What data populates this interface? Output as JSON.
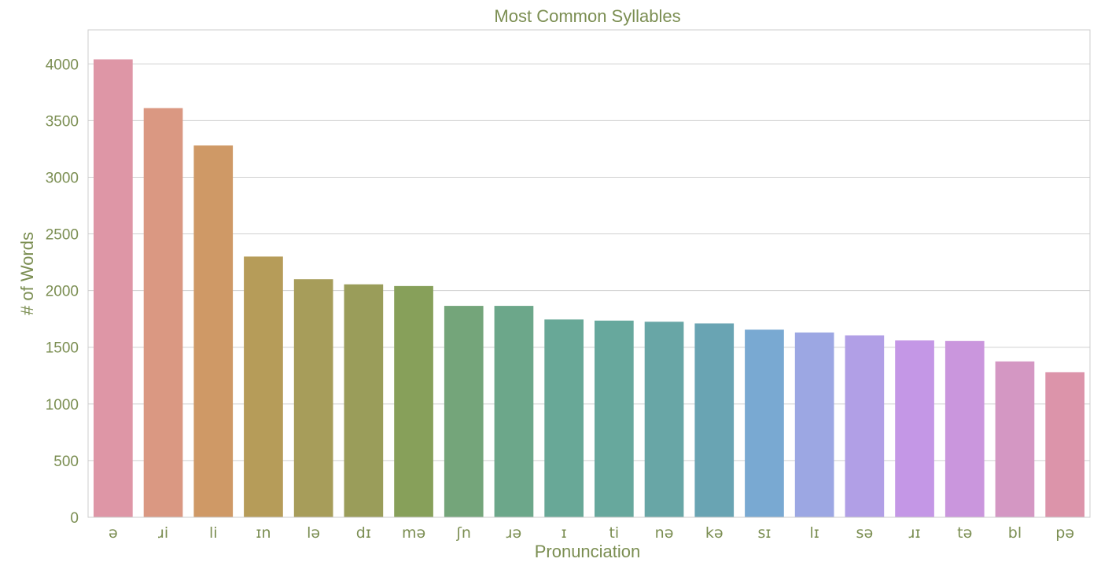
{
  "chart_data": {
    "type": "bar",
    "title": "Most Common Syllables",
    "xlabel": "Pronunciation",
    "ylabel": "# of Words",
    "categories": [
      "ə",
      "ɹi",
      "li",
      "ɪn",
      "lə",
      "dɪ",
      "mə",
      "ʃn",
      "ɹə",
      "ɪ",
      "ti",
      "nə",
      "kə",
      "sɪ",
      "lɪ",
      "sə",
      "ɹɪ",
      "tə",
      "bl",
      "pə"
    ],
    "values": [
      4040,
      3610,
      3280,
      2300,
      2100,
      2055,
      2040,
      1865,
      1865,
      1745,
      1735,
      1725,
      1710,
      1655,
      1630,
      1605,
      1560,
      1555,
      1375,
      1280
    ],
    "ylim": [
      0,
      4300
    ],
    "yticks": [
      0,
      500,
      1000,
      1500,
      2000,
      2500,
      3000,
      3500,
      4000
    ],
    "grid": true,
    "colors": [
      "#DE96A6",
      "#DA9882",
      "#CF9966",
      "#B69C59",
      "#A79D5A",
      "#9A9D5A",
      "#87A05A",
      "#74A57A",
      "#6CA78A",
      "#68A897",
      "#67A89D",
      "#68A6A6",
      "#69A4B3",
      "#79A9D2",
      "#9CA7E3",
      "#B19FE6",
      "#C497E6",
      "#CA96DD",
      "#D497C3",
      "#DC94AA"
    ],
    "text_color": "#7B8E52",
    "grid_color": "#D0D0D0",
    "spine_color": "#CCCCCC"
  }
}
